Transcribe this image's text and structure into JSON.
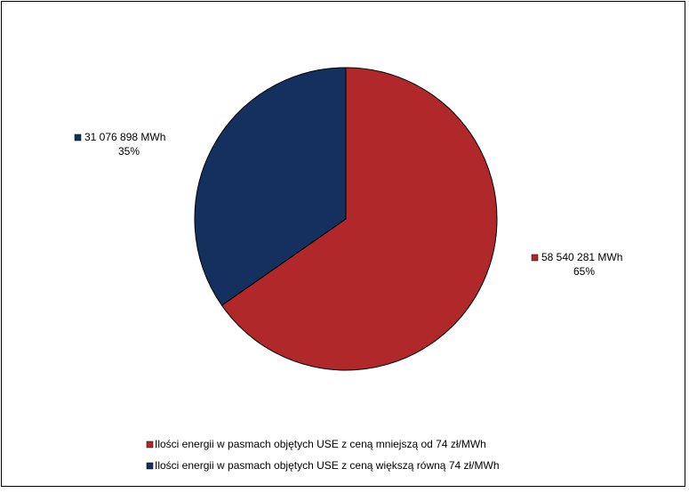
{
  "chart_data": {
    "type": "pie",
    "categories": [
      "Ilości energii w pasmach objętych USE z ceną mniejszą od 74 zł/MWh",
      "Ilości energii w pasmach objętych USE z ceną większą równą 74 zł/MWh"
    ],
    "values": [
      58540281,
      31076898
    ],
    "value_labels": [
      "58 540 281 MWh",
      "31 076 898 MWh"
    ],
    "percents": [
      65,
      35
    ],
    "percent_labels": [
      "65%",
      "35%"
    ],
    "colors": [
      "#b0282a",
      "#13305e"
    ]
  }
}
